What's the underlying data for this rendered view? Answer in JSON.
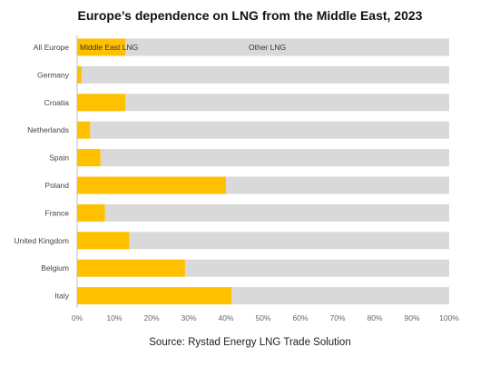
{
  "chart_data": {
    "type": "bar",
    "orientation": "horizontal",
    "stacked": true,
    "title": "Europe’s dependence on LNG from the Middle East, 2023",
    "source": "Source: Rystad Energy LNG Trade Solution",
    "categories": [
      "All Europe",
      "Germany",
      "Croatia",
      "Netherlands",
      "Spain",
      "Poland",
      "France",
      "United Kingdom",
      "Belgium",
      "Italy"
    ],
    "series": [
      {
        "name": "Middle East LNG",
        "color": "#ffc000",
        "values": [
          13,
          1.2,
          13,
          3.5,
          6.3,
          40,
          7.5,
          14,
          29,
          41.5
        ]
      },
      {
        "name": "Other LNG",
        "color": "#d9d9d9",
        "values": [
          87,
          98.8,
          87,
          96.5,
          93.7,
          60,
          92.5,
          86,
          71,
          58.5
        ]
      }
    ],
    "xlim": [
      0,
      100
    ],
    "xticks": [
      "0%",
      "10%",
      "20%",
      "30%",
      "40%",
      "50%",
      "60%",
      "70%",
      "80%",
      "90%",
      "100%"
    ],
    "legend": "inline labels on top bar",
    "grid": false
  }
}
